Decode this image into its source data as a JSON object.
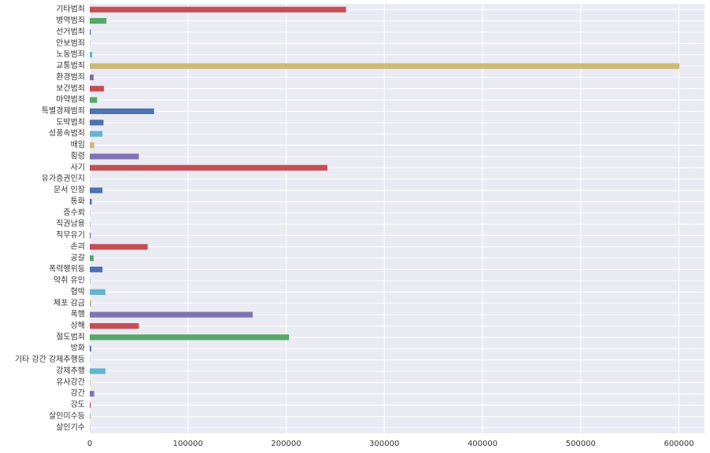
{
  "chart_data": {
    "type": "bar",
    "orientation": "horizontal",
    "categories": [
      "기타범죄",
      "병역범죄",
      "선거범죄",
      "안보범죄",
      "노동범죄",
      "교통범죄",
      "환경범죄",
      "보건범죄",
      "마약범죄",
      "특별경제범죄",
      "도박범죄",
      "성풍속범죄",
      "배임",
      "횡령",
      "사기",
      "유가증권인지",
      "문서 인장",
      "통화",
      "증수뢰",
      "직권남용",
      "직무유기",
      "손괴",
      "공갈",
      "폭력행위등",
      "약취 유인",
      "협박",
      "체포 감금",
      "폭행",
      "상해",
      "절도범죄",
      "방화",
      "기타 강간 강제추행등",
      "강제추행",
      "유사강간",
      "강간",
      "강도",
      "살인미수등",
      "살인기수"
    ],
    "values": [
      261000,
      17000,
      1000,
      200,
      2500,
      600500,
      4000,
      14500,
      7500,
      65500,
      14000,
      13000,
      4500,
      50000,
      242000,
      200,
      13000,
      2000,
      200,
      300,
      1000,
      59000,
      4000,
      13000,
      300,
      16000,
      1500,
      166000,
      50000,
      203000,
      1500,
      200,
      16000,
      500,
      4500,
      1000,
      500,
      200
    ],
    "colors": [
      "#c44e52",
      "#55a868",
      "#4c72b0",
      "#4c72b0",
      "#64b5cd",
      "#ccb974",
      "#8172b2",
      "#c44e52",
      "#55a868",
      "#4c72b0",
      "#4c72b0",
      "#64b5cd",
      "#ccb974",
      "#8172b2",
      "#c44e52",
      "#55a868",
      "#4c72b0",
      "#4c72b0",
      "#4c72b0",
      "#4c72b0",
      "#8172b2",
      "#c44e52",
      "#55a868",
      "#4c72b0",
      "#4c72b0",
      "#64b5cd",
      "#ccb974",
      "#8172b2",
      "#c44e52",
      "#55a868",
      "#4c72b0",
      "#4c72b0",
      "#64b5cd",
      "#ccb974",
      "#8172b2",
      "#c44e52",
      "#55a868",
      "#4c72b0"
    ],
    "xticks": [
      0,
      100000,
      200000,
      300000,
      400000,
      500000,
      600000
    ],
    "xlim": [
      0,
      626000
    ],
    "grid": true,
    "background": "#eaeaf2",
    "title": "",
    "xlabel": "",
    "ylabel": ""
  }
}
